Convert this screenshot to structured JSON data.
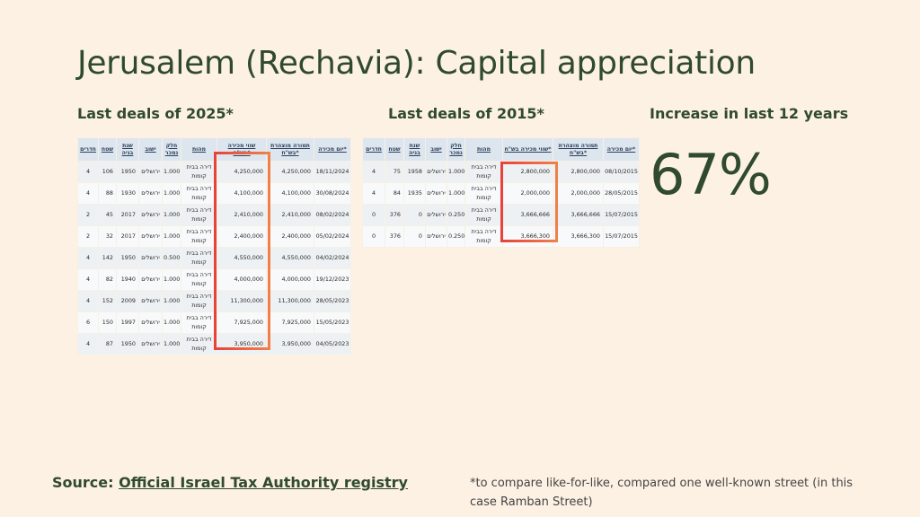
{
  "title": "Jerusalem (Rechavia): Capital appreciation",
  "left": {
    "heading": "Last deals of 2025*",
    "headers": [
      "חדרים",
      "שטח",
      "שנת בניה",
      "ישוב",
      "חלק נמכר",
      "מהות",
      "שווי מכירה בש\"ח*",
      "תמורה מוצהרת בש\"ח*",
      "יום מכירה*"
    ],
    "rows": [
      [
        "4",
        "106",
        "1950",
        "ירושלים",
        "1.000",
        "דירה בבית קומות",
        "4,250,000",
        "4,250,000",
        "18/11/2024"
      ],
      [
        "4",
        "88",
        "1930",
        "ירושלים",
        "1.000",
        "דירה בבית קומות",
        "4,100,000",
        "4,100,000",
        "30/08/2024"
      ],
      [
        "2",
        "45",
        "2017",
        "ירושלים",
        "1.000",
        "דירה בבית קומות",
        "2,410,000",
        "2,410,000",
        "08/02/2024"
      ],
      [
        "2",
        "32",
        "2017",
        "ירושלים",
        "1.000",
        "דירה בבית קומות",
        "2,400,000",
        "2,400,000",
        "05/02/2024"
      ],
      [
        "4",
        "142",
        "1950",
        "ירושלים",
        "0.500",
        "דירה בבית קומות",
        "4,550,000",
        "4,550,000",
        "04/02/2024"
      ],
      [
        "4",
        "82",
        "1940",
        "ירושלים",
        "1.000",
        "דירה בבית קומות",
        "4,000,000",
        "4,000,000",
        "19/12/2023"
      ],
      [
        "4",
        "152",
        "2009",
        "ירושלים",
        "1.000",
        "דירה בבית קומות",
        "11,300,000",
        "11,300,000",
        "28/05/2023"
      ],
      [
        "6",
        "150",
        "1997",
        "ירושלים",
        "1.000",
        "דירה בבית קומות",
        "7,925,000",
        "7,925,000",
        "15/05/2023"
      ],
      [
        "4",
        "87",
        "1950",
        "ירושלים",
        "1.000",
        "דירה בבית קומות",
        "3,950,000",
        "3,950,000",
        "04/05/2023"
      ]
    ]
  },
  "right": {
    "heading": "Last deals of 2015*",
    "headers": [
      "חדרים",
      "שטח",
      "שנת בניה",
      "ישוב",
      "חלק נמכר",
      "מהות",
      "שווי מכירה בש\"ח*",
      "תמורה מוצהרת בש\"ח*",
      "יום מכירה*"
    ],
    "rows": [
      [
        "4",
        "75",
        "1958",
        "ירושלים",
        "1.000",
        "דירה בבית קומות",
        "2,800,000",
        "2,800,000",
        "08/10/2015"
      ],
      [
        "4",
        "84",
        "1935",
        "ירושלים",
        "1.000",
        "דירה בבית קומות",
        "2,000,000",
        "2,000,000",
        "28/05/2015"
      ],
      [
        "0",
        "376",
        "0",
        "ירושלים",
        "0.250",
        "דירה בבית קומות",
        "3,666,666",
        "3,666,666",
        "15/07/2015"
      ],
      [
        "0",
        "376",
        "0",
        "ירושלים",
        "0.250",
        "דירה בבית קומות",
        "3,666,300",
        "3,666,300",
        "15/07/2015"
      ]
    ]
  },
  "increase": {
    "label": "Increase in last 12 years",
    "value": "67%"
  },
  "source": {
    "prefix": "Source: ",
    "link_text": "Official Israel Tax Authority registry"
  },
  "footnote": "*to compare like-for-like, compared one well-known street (in this case Ramban Street)"
}
